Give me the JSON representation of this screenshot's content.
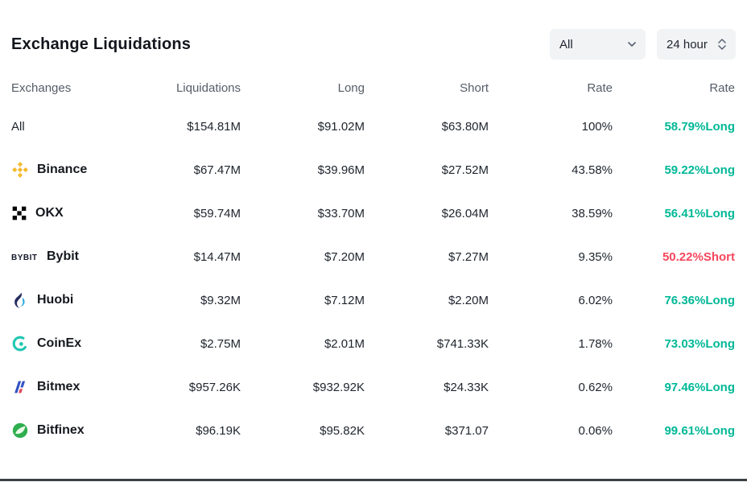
{
  "page": {
    "title": "Exchange Liquidations",
    "filters": {
      "scope": {
        "value": "All"
      },
      "timeframe": {
        "value": "24 hour"
      }
    }
  },
  "table": {
    "columns": [
      {
        "label": "Exchanges",
        "align": "left"
      },
      {
        "label": "Liquidations",
        "align": "right"
      },
      {
        "label": "Long",
        "align": "right"
      },
      {
        "label": "Short",
        "align": "right"
      },
      {
        "label": "Rate",
        "align": "right"
      },
      {
        "label": "Rate",
        "align": "right"
      }
    ],
    "rows": [
      {
        "exchange": "All",
        "icon": "",
        "liquidations": "$154.81M",
        "long": "$91.02M",
        "short": "$63.80M",
        "rate": "100%",
        "rate2": "58.79%Long",
        "rate2_type": "long",
        "bold": false
      },
      {
        "exchange": "Binance",
        "icon": "binance-icon",
        "liquidations": "$67.47M",
        "long": "$39.96M",
        "short": "$27.52M",
        "rate": "43.58%",
        "rate2": "59.22%Long",
        "rate2_type": "long",
        "bold": true
      },
      {
        "exchange": "OKX",
        "icon": "okx-icon",
        "liquidations": "$59.74M",
        "long": "$33.70M",
        "short": "$26.04M",
        "rate": "38.59%",
        "rate2": "56.41%Long",
        "rate2_type": "long",
        "bold": true
      },
      {
        "exchange": "Bybit",
        "icon": "bybit-icon",
        "liquidations": "$14.47M",
        "long": "$7.20M",
        "short": "$7.27M",
        "rate": "9.35%",
        "rate2": "50.22%Short",
        "rate2_type": "short",
        "bold": true
      },
      {
        "exchange": "Huobi",
        "icon": "huobi-icon",
        "liquidations": "$9.32M",
        "long": "$7.12M",
        "short": "$2.20M",
        "rate": "6.02%",
        "rate2": "76.36%Long",
        "rate2_type": "long",
        "bold": true
      },
      {
        "exchange": "CoinEx",
        "icon": "coinex-icon",
        "liquidations": "$2.75M",
        "long": "$2.01M",
        "short": "$741.33K",
        "rate": "1.78%",
        "rate2": "73.03%Long",
        "rate2_type": "long",
        "bold": true
      },
      {
        "exchange": "Bitmex",
        "icon": "bitmex-icon",
        "liquidations": "$957.26K",
        "long": "$932.92K",
        "short": "$24.33K",
        "rate": "0.62%",
        "rate2": "97.46%Long",
        "rate2_type": "long",
        "bold": true
      },
      {
        "exchange": "Bitfinex",
        "icon": "bitfinex-icon",
        "liquidations": "$96.19K",
        "long": "$95.82K",
        "short": "$371.07",
        "rate": "0.06%",
        "rate2": "99.61%Long",
        "rate2_type": "long",
        "bold": true
      }
    ]
  },
  "colors": {
    "long": "#00b897",
    "short": "#f5475d",
    "binance_yellow": "#F3BA2F"
  }
}
